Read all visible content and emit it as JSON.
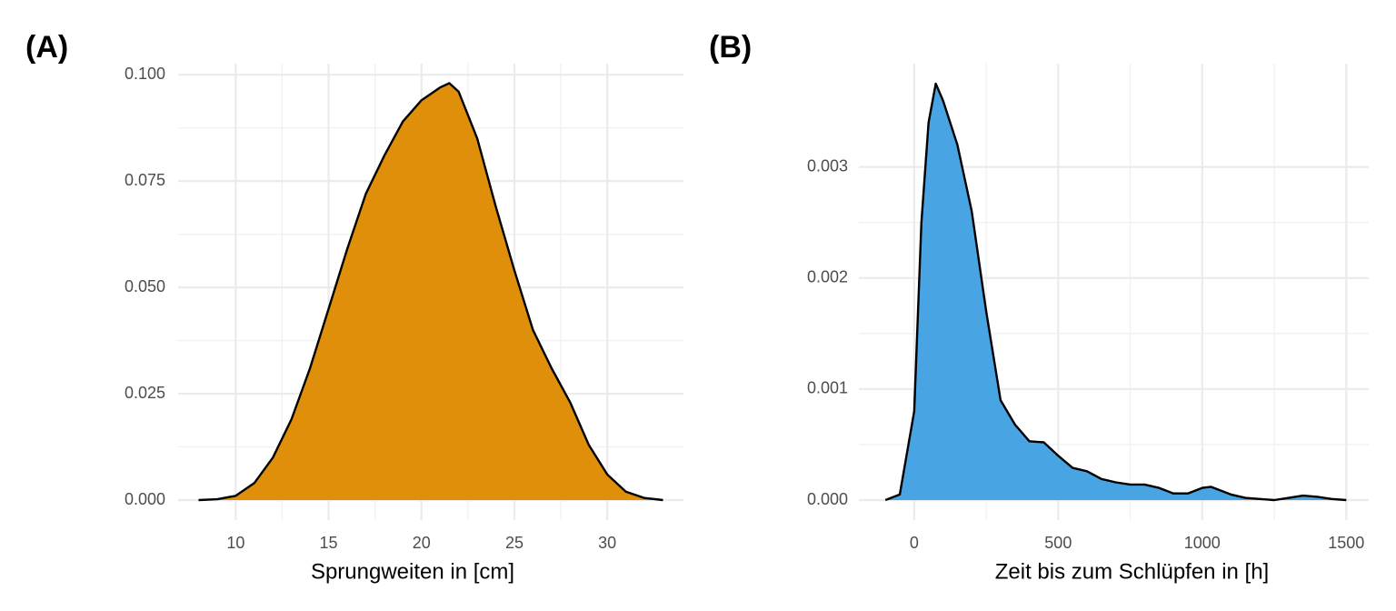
{
  "chart_data": [
    {
      "type": "area",
      "panel_label": "(A)",
      "x_label": "Sprungweiten in [cm]",
      "color": "#df8f09",
      "grid": true,
      "x": [
        8,
        9,
        10,
        11,
        12,
        13,
        14,
        15,
        16,
        17,
        18,
        19,
        20,
        21,
        21.5,
        22,
        23,
        24,
        25,
        26,
        27,
        28,
        29,
        30,
        31,
        32,
        33
      ],
      "values": [
        0,
        0.0002,
        0.001,
        0.004,
        0.01,
        0.019,
        0.031,
        0.045,
        0.059,
        0.072,
        0.081,
        0.089,
        0.094,
        0.097,
        0.098,
        0.096,
        0.085,
        0.069,
        0.054,
        0.04,
        0.031,
        0.023,
        0.013,
        0.006,
        0.002,
        0.0005,
        0
      ],
      "xlim": [
        6.9,
        34.1
      ],
      "ylim": [
        -0.0047,
        0.1026
      ],
      "xticks": [
        10,
        15,
        20,
        25,
        30
      ],
      "yticks": [
        {
          "value": 0,
          "label": "0.000"
        },
        {
          "value": 0.025,
          "label": "0.025"
        },
        {
          "value": 0.05,
          "label": "0.050"
        },
        {
          "value": 0.075,
          "label": "0.075"
        },
        {
          "value": 0.1,
          "label": "0.100"
        }
      ]
    },
    {
      "type": "area",
      "panel_label": "(B)",
      "x_label": "Zeit bis zum Schlüpfen in [h]",
      "color": "#48a4e3",
      "grid": true,
      "x": [
        -100,
        -50,
        0,
        25,
        50,
        75,
        100,
        150,
        200,
        250,
        300,
        350,
        400,
        450,
        500,
        550,
        600,
        650,
        700,
        750,
        800,
        850,
        900,
        950,
        1000,
        1030,
        1100,
        1150,
        1200,
        1250,
        1300,
        1350,
        1400,
        1450,
        1500
      ],
      "values": [
        0,
        5e-05,
        0.0008,
        0.0025,
        0.0034,
        0.00375,
        0.0036,
        0.0032,
        0.0026,
        0.0017,
        0.0009,
        0.00068,
        0.00053,
        0.00052,
        0.0004,
        0.00029,
        0.00026,
        0.00019,
        0.00016,
        0.00014,
        0.00014,
        0.00011,
        6e-05,
        6e-05,
        0.00011,
        0.00012,
        5e-05,
        2e-05,
        1e-05,
        0,
        2e-05,
        4e-05,
        3e-05,
        1e-05,
        0
      ],
      "xlim": [
        -192,
        1578
      ],
      "ylim": [
        -0.00018,
        0.00393
      ],
      "xticks": [
        0,
        500,
        1000,
        1500
      ],
      "yticks": [
        {
          "value": 0,
          "label": "0.000"
        },
        {
          "value": 0.001,
          "label": "0.001"
        },
        {
          "value": 0.002,
          "label": "0.002"
        },
        {
          "value": 0.003,
          "label": "0.003"
        }
      ]
    }
  ]
}
